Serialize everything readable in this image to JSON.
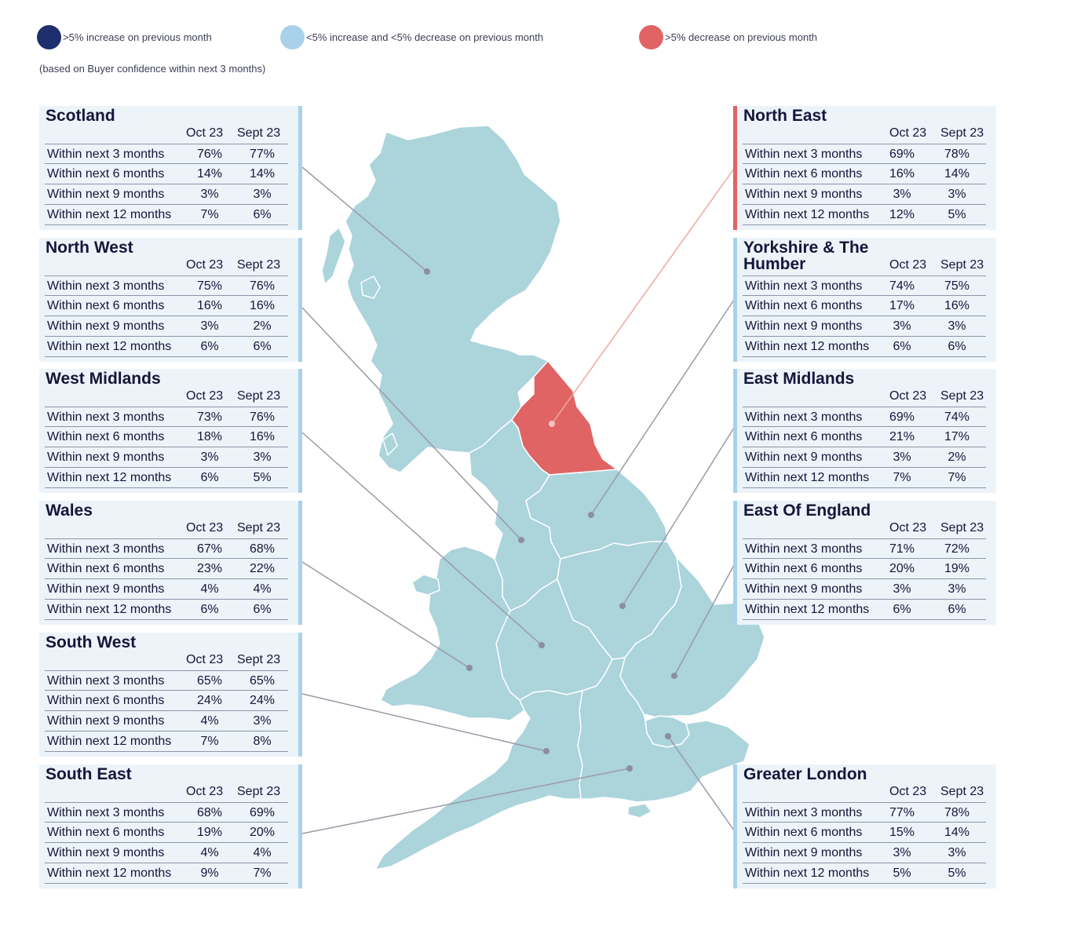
{
  "legend": {
    "items": [
      {
        "color": "#1f2f6e",
        "label": ">5% increase on previous month"
      },
      {
        "color": "#a9d2ea",
        "label": "<5% increase and <5% decrease on previous month"
      },
      {
        "color": "#e06464",
        "label": ">5% decrease on previous month"
      }
    ],
    "note": "(based on Buyer confidence within next 3 months)"
  },
  "columns": {
    "current": "Oct 23",
    "previous": "Sept 23"
  },
  "row_labels": [
    "Within next 3 months",
    "Within next 6 months",
    "Within next 9 months",
    "Within next 12 months"
  ],
  "regions": {
    "scotland": {
      "title": "Scotland",
      "status": "stable",
      "oct": [
        "76%",
        "14%",
        "3%",
        "7%"
      ],
      "sept": [
        "77%",
        "14%",
        "3%",
        "6%"
      ]
    },
    "north_west": {
      "title": "North West",
      "status": "stable",
      "oct": [
        "75%",
        "16%",
        "3%",
        "6%"
      ],
      "sept": [
        "76%",
        "16%",
        "2%",
        "6%"
      ]
    },
    "west_midlands": {
      "title": "West Midlands",
      "status": "stable",
      "oct": [
        "73%",
        "18%",
        "3%",
        "6%"
      ],
      "sept": [
        "76%",
        "16%",
        "3%",
        "5%"
      ]
    },
    "wales": {
      "title": "Wales",
      "status": "stable",
      "oct": [
        "67%",
        "23%",
        "4%",
        "6%"
      ],
      "sept": [
        "68%",
        "22%",
        "4%",
        "6%"
      ]
    },
    "south_west": {
      "title": "South West",
      "status": "stable",
      "oct": [
        "65%",
        "24%",
        "4%",
        "7%"
      ],
      "sept": [
        "65%",
        "24%",
        "3%",
        "8%"
      ]
    },
    "south_east": {
      "title": "South East",
      "status": "stable",
      "oct": [
        "68%",
        "19%",
        "4%",
        "9%"
      ],
      "sept": [
        "69%",
        "20%",
        "4%",
        "7%"
      ]
    },
    "north_east": {
      "title": "North East",
      "status": "decrease",
      "oct": [
        "69%",
        "16%",
        "3%",
        "12%"
      ],
      "sept": [
        "78%",
        "14%",
        "3%",
        "5%"
      ]
    },
    "yorkshire": {
      "title": "Yorkshire & The Humber",
      "status": "stable",
      "oct": [
        "74%",
        "17%",
        "3%",
        "6%"
      ],
      "sept": [
        "75%",
        "16%",
        "3%",
        "6%"
      ]
    },
    "east_midlands": {
      "title": "East Midlands",
      "status": "stable",
      "oct": [
        "69%",
        "21%",
        "3%",
        "7%"
      ],
      "sept": [
        "74%",
        "17%",
        "2%",
        "7%"
      ]
    },
    "east_of_england": {
      "title": "East Of England",
      "status": "stable",
      "oct": [
        "71%",
        "20%",
        "3%",
        "6%"
      ],
      "sept": [
        "72%",
        "19%",
        "3%",
        "6%"
      ]
    },
    "greater_london": {
      "title": "Greater London",
      "status": "stable",
      "oct": [
        "77%",
        "15%",
        "3%",
        "5%"
      ],
      "sept": [
        "78%",
        "14%",
        "3%",
        "5%"
      ]
    }
  },
  "colors": {
    "land": "#abd4db",
    "highlight": "#e06464",
    "border": "#ffffff",
    "leader": "#9a9aa6",
    "leader_highlight": "#eeaa9c"
  }
}
